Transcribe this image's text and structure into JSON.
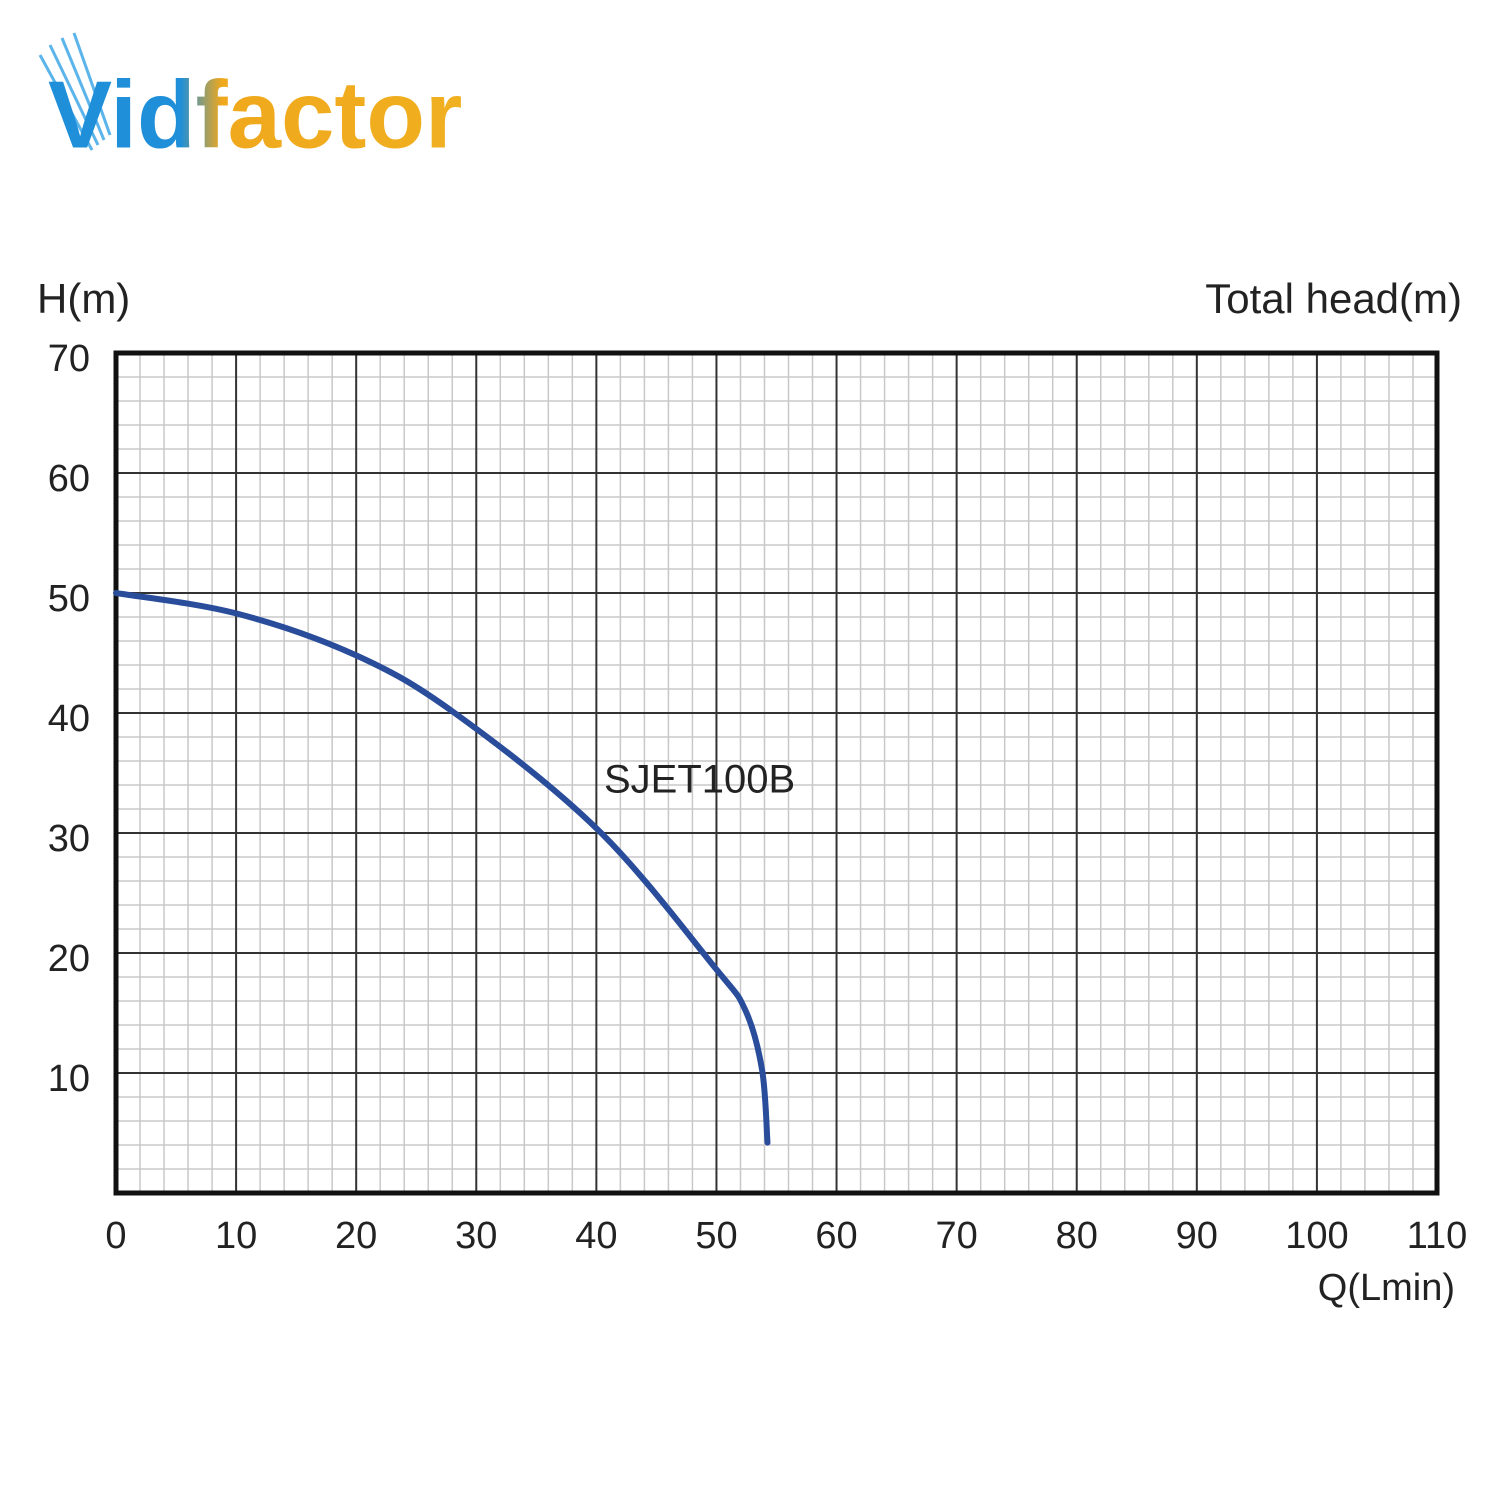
{
  "brand": "Vidfactor",
  "chart_data": {
    "type": "line",
    "y_label": "H(m)",
    "y2_label": "Total head(m)",
    "x_label": "Q(Lmin)",
    "x": [
      0,
      10,
      20,
      28.2,
      40.2,
      49.9,
      52.4,
      53.8,
      54.25
    ],
    "series": [
      {
        "name": "SJET100B",
        "color": "#2a4d9b",
        "values": [
          50,
          48.3,
          44.8,
          40,
          30.2,
          18.75,
          15.25,
          10.25,
          4.2
        ]
      }
    ],
    "xlim": [
      0,
      110
    ],
    "ylim": [
      0,
      70
    ],
    "xticks": [
      0,
      10,
      20,
      30,
      40,
      50,
      60,
      70,
      80,
      90,
      100,
      110
    ],
    "yticks": [
      10,
      20,
      30,
      40,
      50,
      60,
      70
    ],
    "grid": true,
    "minor_grid_divisions": 5
  }
}
